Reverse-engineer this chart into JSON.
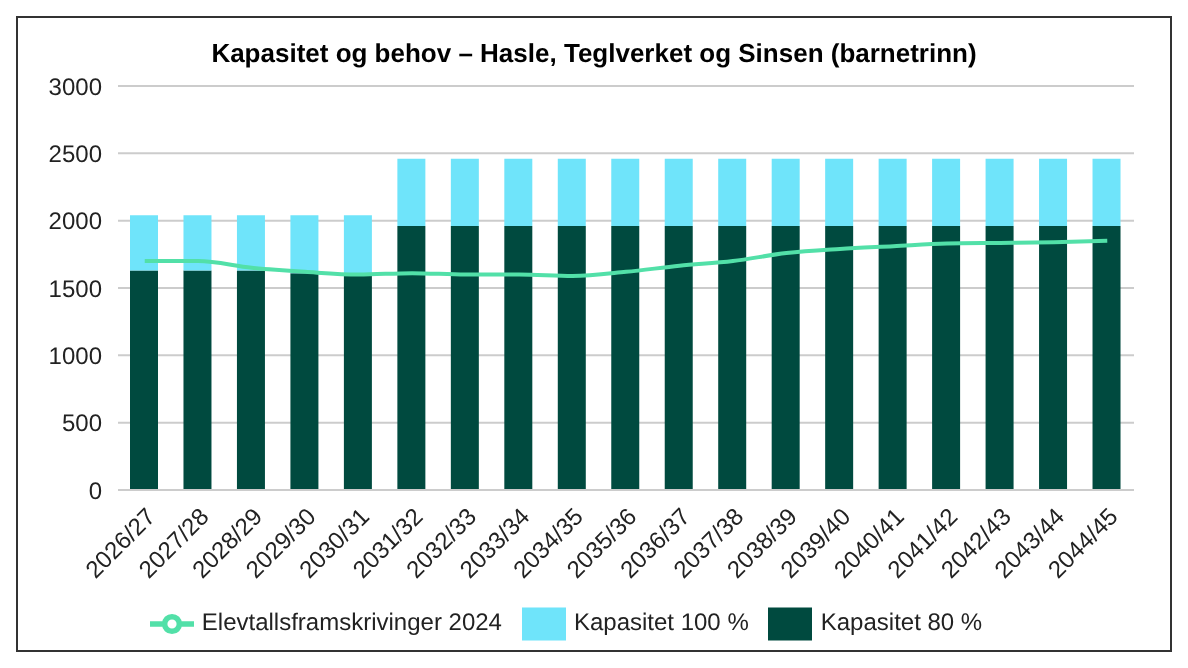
{
  "chart_data": {
    "type": "bar",
    "title": "Kapasitet og behov – Hasle, Teglverket og Sinsen (barnetrinn)",
    "categories": [
      "2026/27",
      "2027/28",
      "2028/29",
      "2029/30",
      "2030/31",
      "2031/32",
      "2032/33",
      "2033/34",
      "2034/35",
      "2035/36",
      "2036/37",
      "2037/38",
      "2038/39",
      "2039/40",
      "2040/41",
      "2041/42",
      "2042/43",
      "2043/44",
      "2044/45"
    ],
    "stacked": true,
    "series": [
      {
        "name": "Kapasitet 80 %",
        "color": "#004a3f",
        "values": [
          1630,
          1630,
          1630,
          1610,
          1600,
          1960,
          1960,
          1960,
          1960,
          1960,
          1960,
          1960,
          1960,
          1960,
          1960,
          1960,
          1960,
          1960,
          1960
        ]
      },
      {
        "name": "Kapasitet 100 %",
        "color": "#6fe4fa",
        "values": [
          410,
          410,
          410,
          430,
          440,
          500,
          500,
          500,
          500,
          500,
          500,
          500,
          500,
          500,
          500,
          500,
          500,
          500,
          500
        ]
      },
      {
        "name": "Elevtallsframskrivinger 2024",
        "type": "line",
        "color": "#52e0a8",
        "values": [
          1700,
          1700,
          1650,
          1620,
          1600,
          1610,
          1600,
          1600,
          1590,
          1620,
          1665,
          1700,
          1760,
          1790,
          1810,
          1830,
          1835,
          1840,
          1850
        ]
      }
    ],
    "ylim": [
      0,
      3000
    ],
    "yticks": [
      0,
      500,
      1000,
      1500,
      2000,
      2500,
      3000
    ],
    "grid": "y",
    "legend": "bottom",
    "marker": "none"
  }
}
